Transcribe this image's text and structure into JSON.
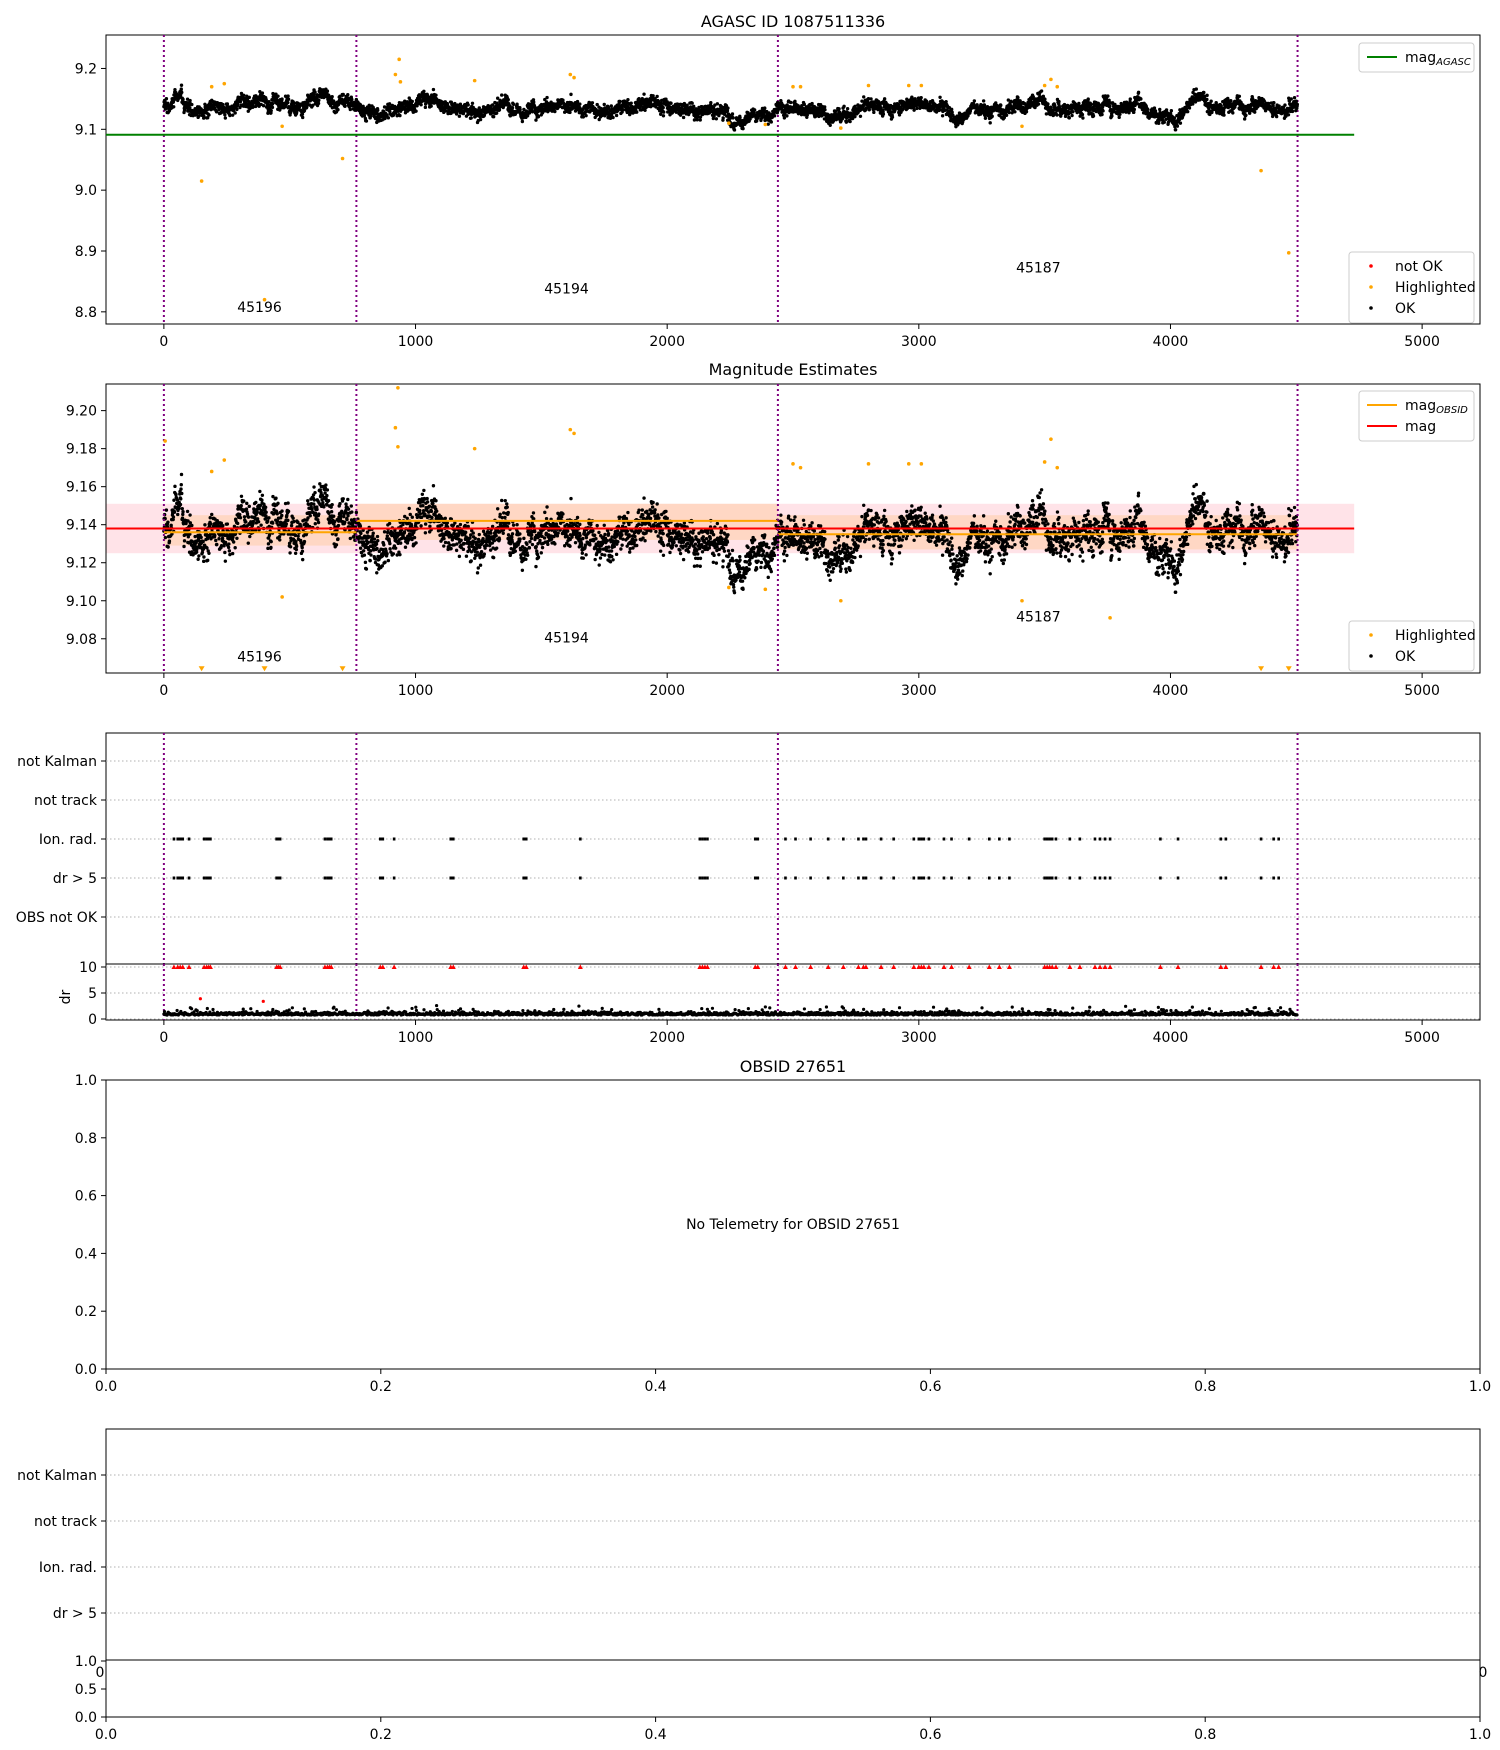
{
  "chart_data": [
    {
      "type": "scatter",
      "title": "AGASC ID 1087511336",
      "xlim": [
        -230,
        5230
      ],
      "ylim": [
        8.78,
        9.255
      ],
      "xticks": [
        0,
        1000,
        2000,
        3000,
        4000,
        5000
      ],
      "yticks": [
        8.8,
        8.9,
        9.0,
        9.1,
        9.2
      ],
      "ytick_labels": [
        "8.8",
        "8.9",
        "9.0",
        "9.1",
        "9.2"
      ],
      "obsid_boundaries": [
        0,
        765,
        2440,
        4505
      ],
      "obsid_labels": [
        {
          "x": 380,
          "y": 8.8,
          "text": "45196"
        },
        {
          "x": 1600,
          "y": 8.83,
          "text": "45194"
        },
        {
          "x": 3475,
          "y": 8.865,
          "text": "45187"
        }
      ],
      "reference_lines": [
        {
          "name": "mag_AGASC",
          "y": 9.091,
          "x": [
            -230,
            4730
          ],
          "color": "#008000"
        }
      ],
      "series": [
        {
          "name": "OK",
          "color": "#000000",
          "generator": "mag_ok",
          "baseline": 9.14,
          "spread": 0.013,
          "n": 4500
        },
        {
          "name": "Highlighted",
          "color": "#ffa500",
          "points": [
            [
              150,
              9.015
            ],
            [
              190,
              9.17
            ],
            [
              240,
              9.175
            ],
            [
              400,
              8.82
            ],
            [
              470,
              9.105
            ],
            [
              710,
              9.052
            ],
            [
              920,
              9.19
            ],
            [
              935,
              9.215
            ],
            [
              940,
              9.178
            ],
            [
              1235,
              9.18
            ],
            [
              1615,
              9.19
            ],
            [
              1630,
              9.185
            ],
            [
              2245,
              9.11
            ],
            [
              2390,
              9.108
            ],
            [
              2500,
              9.17
            ],
            [
              2530,
              9.17
            ],
            [
              2690,
              9.102
            ],
            [
              2800,
              9.172
            ],
            [
              2960,
              9.172
            ],
            [
              3010,
              9.172
            ],
            [
              3410,
              9.105
            ],
            [
              3500,
              9.172
            ],
            [
              3525,
              9.182
            ],
            [
              3550,
              9.17
            ],
            [
              4360,
              9.032
            ],
            [
              4470,
              8.897
            ]
          ]
        },
        {
          "name": "not OK",
          "color": "#ff0000",
          "points": []
        }
      ],
      "legend_upper": [
        "mag_AGASC"
      ],
      "legend_lower": [
        "not OK",
        "Highlighted",
        "OK"
      ]
    },
    {
      "type": "scatter",
      "title": "Magnitude Estimates",
      "xlim": [
        -230,
        5230
      ],
      "ylim": [
        9.062,
        9.214
      ],
      "xticks": [
        0,
        1000,
        2000,
        3000,
        4000,
        5000
      ],
      "yticks": [
        9.08,
        9.1,
        9.12,
        9.14,
        9.16,
        9.18,
        9.2
      ],
      "ytick_labels": [
        "9.08",
        "9.10",
        "9.12",
        "9.14",
        "9.16",
        "9.18",
        "9.20"
      ],
      "obsid_boundaries": [
        0,
        765,
        2440,
        4505
      ],
      "obsid_labels": [
        {
          "x": 380,
          "y": 9.068,
          "text": "45196"
        },
        {
          "x": 1600,
          "y": 9.078,
          "text": "45194"
        },
        {
          "x": 3475,
          "y": 9.089,
          "text": "45187"
        }
      ],
      "bands": [
        {
          "x": [
            -230,
            4730
          ],
          "y": [
            9.125,
            9.151
          ],
          "color": "#ffc0cb",
          "opacity": 0.45
        },
        {
          "x": [
            0,
            765
          ],
          "y": [
            9.129,
            9.145
          ],
          "color": "#ffc080",
          "opacity": 0.35
        },
        {
          "x": [
            765,
            2440
          ],
          "y": [
            9.132,
            9.151
          ],
          "color": "#ffc080",
          "opacity": 0.35
        },
        {
          "x": [
            2440,
            4505
          ],
          "y": [
            9.127,
            9.145
          ],
          "color": "#ffc080",
          "opacity": 0.35
        }
      ],
      "reference_lines": [
        {
          "name": "mag",
          "y": 9.138,
          "x": [
            -230,
            4730
          ],
          "color": "#ff0000"
        },
        {
          "name": "mag_OBSID",
          "y": 9.136,
          "x": [
            0,
            765
          ],
          "color": "#ffa500"
        },
        {
          "name": "mag_OBSID",
          "y": 9.142,
          "x": [
            765,
            2440
          ],
          "color": "#ffa500"
        },
        {
          "name": "mag_OBSID",
          "y": 9.135,
          "x": [
            2440,
            4505
          ],
          "color": "#ffa500"
        }
      ],
      "series": [
        {
          "name": "OK",
          "color": "#000000",
          "generator": "mag_ok",
          "baseline": 9.139,
          "spread": 0.011,
          "n": 4500
        },
        {
          "name": "Highlighted",
          "color": "#ffa500",
          "points": [
            [
              5,
              9.184
            ],
            [
              190,
              9.168
            ],
            [
              240,
              9.174
            ],
            [
              470,
              9.102
            ],
            [
              930,
              9.212
            ],
            [
              920,
              9.191
            ],
            [
              930,
              9.181
            ],
            [
              1235,
              9.18
            ],
            [
              1615,
              9.19
            ],
            [
              1630,
              9.188
            ],
            [
              2245,
              9.107
            ],
            [
              2390,
              9.106
            ],
            [
              2500,
              9.172
            ],
            [
              2530,
              9.17
            ],
            [
              2690,
              9.1
            ],
            [
              2800,
              9.172
            ],
            [
              2960,
              9.172
            ],
            [
              3010,
              9.172
            ],
            [
              3410,
              9.1
            ],
            [
              3500,
              9.173
            ],
            [
              3525,
              9.185
            ],
            [
              3550,
              9.17
            ],
            [
              3760,
              9.091
            ]
          ]
        },
        {
          "name": "Highlighted (off-scale)",
          "color": "#ffa500",
          "marker": "triangle-down",
          "points": [
            [
              150,
              9.064
            ],
            [
              400,
              9.064
            ],
            [
              710,
              9.064
            ],
            [
              4360,
              9.064
            ],
            [
              4470,
              9.064
            ]
          ]
        }
      ],
      "legend_upper": [
        "mag_OBSID",
        "mag"
      ],
      "legend_lower": [
        "Highlighted",
        "OK"
      ]
    },
    {
      "type": "scatter",
      "title": "",
      "xlim": [
        -230,
        5230
      ],
      "categories": [
        "OBS not OK",
        "dr > 5",
        "Ion. rad.",
        "not track",
        "not Kalman"
      ],
      "flag_times": [
        40,
        55,
        65,
        75,
        100,
        160,
        170,
        178,
        185,
        448,
        455,
        462,
        640,
        650,
        658,
        665,
        860,
        870,
        915,
        1140,
        1150,
        1430,
        1440,
        1655,
        2130,
        2140,
        2150,
        2160,
        2350,
        2360,
        2470,
        2510,
        2570,
        2640,
        2700,
        2760,
        2780,
        2790,
        2850,
        2900,
        2980,
        3000,
        3010,
        3020,
        3040,
        3100,
        3130,
        3200,
        3280,
        3320,
        3360,
        3500,
        3510,
        3520,
        3530,
        3545,
        3600,
        3640,
        3700,
        3720,
        3740,
        3760,
        3960,
        4030,
        4200,
        4220,
        4360,
        4410,
        4430
      ],
      "flagged_rows": [
        "dr > 5",
        "Ion. rad."
      ],
      "obsid_boundaries": [
        0,
        765,
        2440,
        4505
      ]
    },
    {
      "type": "scatter",
      "title": "",
      "xlim": [
        -230,
        5230
      ],
      "ylim": [
        0,
        10
      ],
      "yticks": [
        0,
        5,
        10
      ],
      "ytick_labels": [
        "0",
        "5",
        "10"
      ],
      "xticks": [
        0,
        1000,
        2000,
        3000,
        4000,
        5000
      ],
      "ylabel": "dr",
      "obsid_boundaries": [
        0,
        765,
        2440,
        4505
      ],
      "series": [
        {
          "name": "dr",
          "color": "#000000",
          "generator": "dr",
          "n": 1800
        },
        {
          "name": "dr outliers",
          "color": "#ff0000",
          "points": [
            [
              145,
              3.9
            ],
            [
              395,
              3.4
            ]
          ]
        },
        {
          "name": "dr > 5 flags",
          "color": "#ff0000",
          "marker": "triangle-up",
          "same_times_as": "flag_times",
          "y": 10
        }
      ]
    },
    {
      "type": "scatter",
      "title": "OBSID 27651",
      "xlim": [
        0,
        1
      ],
      "ylim": [
        0,
        1
      ],
      "xticks": [
        0,
        0.2,
        0.4,
        0.6,
        0.8,
        1.0
      ],
      "yticks": [
        0,
        0.2,
        0.4,
        0.6,
        0.8,
        1.0
      ],
      "xtick_labels": [
        "0.0",
        "0.2",
        "0.4",
        "0.6",
        "0.8",
        "1.0"
      ],
      "ytick_labels": [
        "0.0",
        "0.2",
        "0.4",
        "0.6",
        "0.8",
        "1.0"
      ],
      "annotation": "No Telemetry for OBSID 27651"
    },
    {
      "type": "scatter",
      "title": "",
      "categories": [
        "dr > 5",
        "Ion. rad.",
        "not track",
        "not Kalman"
      ],
      "xtick_labels_partial": [
        "0",
        "0"
      ]
    },
    {
      "type": "scatter",
      "title": "",
      "xlim": [
        0,
        1
      ],
      "ylim": [
        0,
        1
      ],
      "xticks": [
        0,
        0.2,
        0.4,
        0.6,
        0.8,
        1.0
      ],
      "yticks": [
        0,
        0.5,
        1.0
      ],
      "xtick_labels": [
        "0.0",
        "0.2",
        "0.4",
        "0.6",
        "0.8",
        "1.0"
      ],
      "ytick_labels": [
        "0.0",
        "0.5",
        "1.0"
      ]
    }
  ]
}
